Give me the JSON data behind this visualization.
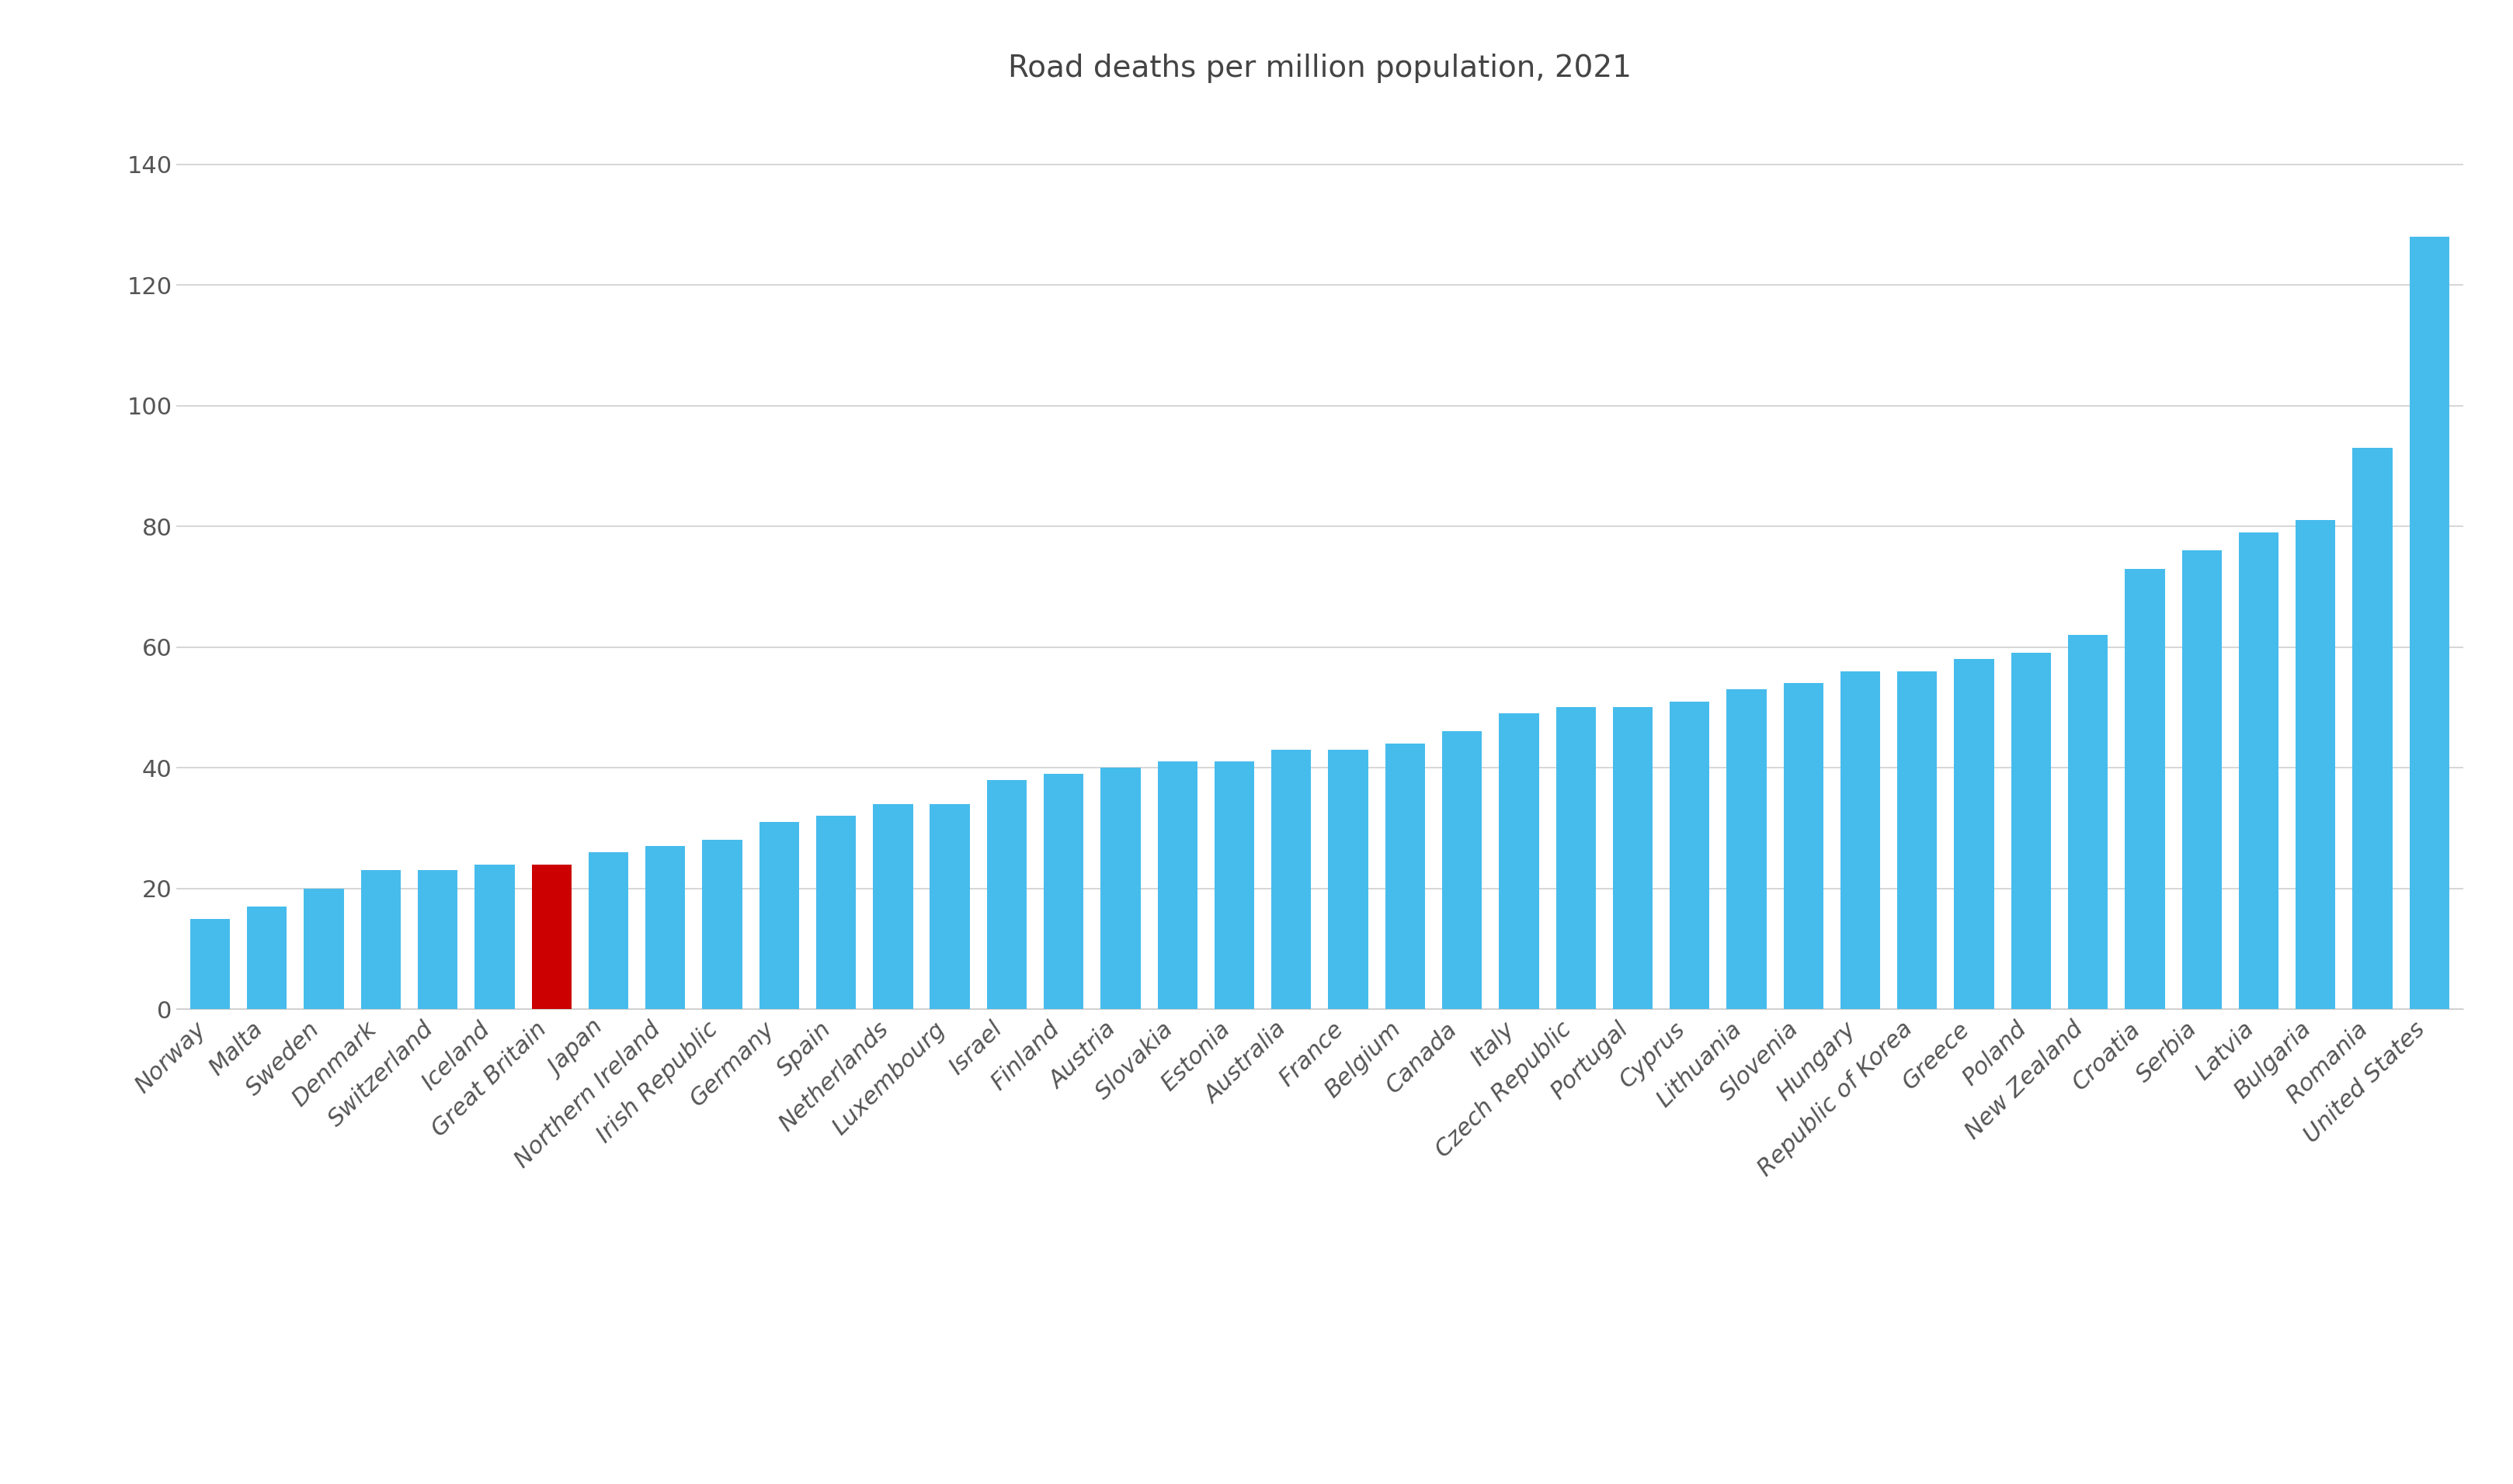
{
  "title": "Road deaths per million population, 2021",
  "categories": [
    "Norway",
    "Malta",
    "Sweden",
    "Denmark",
    "Switzerland",
    "Iceland",
    "Great Britain",
    "Japan",
    "Northern Ireland",
    "Irish Republic",
    "Germany",
    "Spain",
    "Netherlands",
    "Luxembourg",
    "Israel",
    "Finland",
    "Austria",
    "Slovakia",
    "Estonia",
    "Australia",
    "France",
    "Belgium",
    "Canada",
    "Italy",
    "Czech Republic",
    "Portugal",
    "Cyprus",
    "Lithuania",
    "Slovenia",
    "Hungary",
    "Republic of Korea",
    "Greece",
    "Poland",
    "New Zealand",
    "Croatia",
    "Serbia",
    "Latvia",
    "Bulgaria",
    "Romania",
    "United States"
  ],
  "values": [
    15,
    17,
    20,
    23,
    23,
    24,
    24,
    26,
    27,
    28,
    31,
    32,
    34,
    34,
    38,
    39,
    40,
    41,
    41,
    43,
    43,
    44,
    46,
    49,
    50,
    50,
    51,
    53,
    54,
    56,
    56,
    58,
    59,
    62,
    73,
    76,
    79,
    81,
    93,
    128
  ],
  "bar_color": "#46bcec",
  "highlight_country": "Great Britain",
  "highlight_color": "#cc0000",
  "background_color": "#ffffff",
  "grid_color": "#d0d0d0",
  "title_fontsize": 28,
  "tick_fontsize": 22,
  "ylabel_fontsize": 22,
  "ylim": [
    0,
    150
  ],
  "yticks": [
    0,
    20,
    40,
    60,
    80,
    100,
    120,
    140
  ]
}
